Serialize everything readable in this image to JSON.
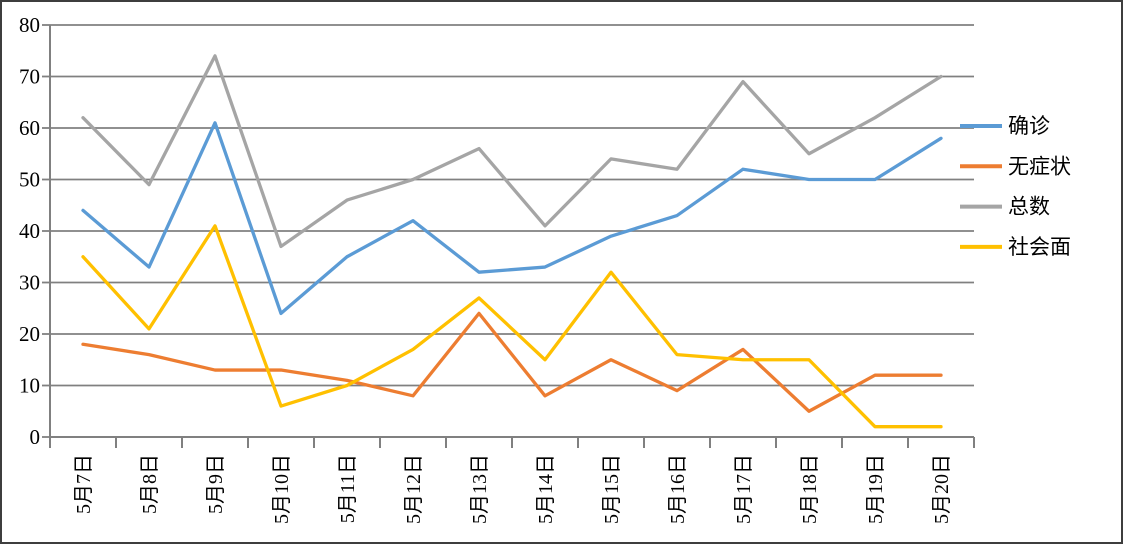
{
  "chart_data": {
    "type": "line",
    "title": "",
    "categories": [
      "5月7日",
      "5月8日",
      "5月9日",
      "5月10日",
      "5月11日",
      "5月12日",
      "5月13日",
      "5月14日",
      "5月15日",
      "5月16日",
      "5月17日",
      "5月18日",
      "5月19日",
      "5月20日"
    ],
    "series": [
      {
        "name": "确诊",
        "color": "#5B9BD5",
        "values": [
          44,
          33,
          61,
          24,
          35,
          42,
          32,
          33,
          39,
          43,
          52,
          50,
          50,
          58
        ]
      },
      {
        "name": "无症状",
        "color": "#ED7D31",
        "values": [
          18,
          16,
          13,
          13,
          11,
          8,
          24,
          8,
          15,
          9,
          17,
          5,
          12,
          12
        ]
      },
      {
        "name": "总数",
        "color": "#A5A5A5",
        "values": [
          62,
          49,
          74,
          37,
          46,
          50,
          56,
          41,
          54,
          52,
          69,
          55,
          62,
          70
        ]
      },
      {
        "name": "社会面",
        "color": "#FFC000",
        "values": [
          35,
          21,
          41,
          6,
          10,
          17,
          27,
          15,
          32,
          16,
          15,
          15,
          2,
          2
        ]
      }
    ],
    "ylim": [
      0,
      80
    ],
    "y_ticks": [
      0,
      10,
      20,
      30,
      40,
      50,
      60,
      70,
      80
    ],
    "grid": true,
    "legend_position": "right",
    "x_label_rotation": -90
  },
  "colors": {
    "gridline": "#808080",
    "axis": "#808080",
    "label_text": "#000000",
    "background": "#FFFFFF",
    "frame_border": "#3E3E3E"
  }
}
